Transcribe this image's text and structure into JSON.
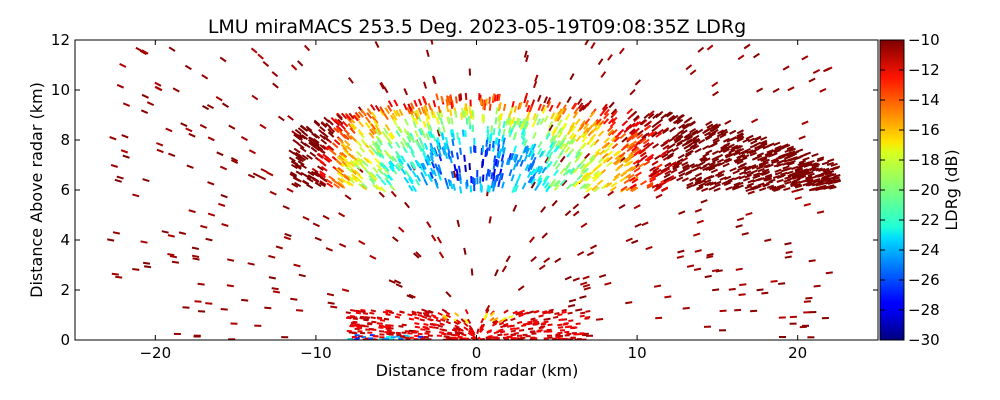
{
  "chart_data": {
    "type": "scatter",
    "title": "LMU miraMACS 253.5 Deg. 2023-05-19T09:08:35Z  LDRg",
    "xlabel": "Distance from radar (km)",
    "ylabel": "Distance Above radar  (km)",
    "xlim": [
      -25,
      25
    ],
    "ylim": [
      0,
      12
    ],
    "xticks": [
      -20,
      -10,
      0,
      10,
      20
    ],
    "xtick_labels": [
      "−20",
      "−10",
      "0",
      "10",
      "20"
    ],
    "yticks": [
      0,
      2,
      4,
      6,
      8,
      10,
      12
    ],
    "ytick_labels": [
      "0",
      "2",
      "4",
      "6",
      "8",
      "10",
      "12"
    ],
    "grid": false,
    "colorbar": {
      "label": "LDRg (dB)",
      "colormap": "jet",
      "range": [
        -30,
        -10
      ],
      "ticks": [
        -30,
        -28,
        -26,
        -24,
        -22,
        -20,
        -18,
        -16,
        -14,
        -12,
        -10
      ],
      "tick_labels": [
        "−30",
        "−28",
        "−26",
        "−24",
        "−22",
        "−20",
        "−18",
        "−16",
        "−14",
        "−12",
        "−10"
      ]
    },
    "regions": [
      {
        "name": "cloud-layer",
        "x_range": [
          -11.5,
          22.5
        ],
        "z_range": [
          6.0,
          9.8
        ],
        "ldr_range": [
          -30,
          -10
        ]
      },
      {
        "name": "low-level-echo",
        "x_range": [
          -8,
          7
        ],
        "z_range": [
          0,
          1.2
        ],
        "ldr_range": [
          -28,
          -10
        ]
      },
      {
        "name": "sparse-returns",
        "x_range": [
          -23,
          22
        ],
        "z_range": [
          0,
          12
        ],
        "ldr_range": [
          -11,
          -10
        ]
      }
    ]
  }
}
